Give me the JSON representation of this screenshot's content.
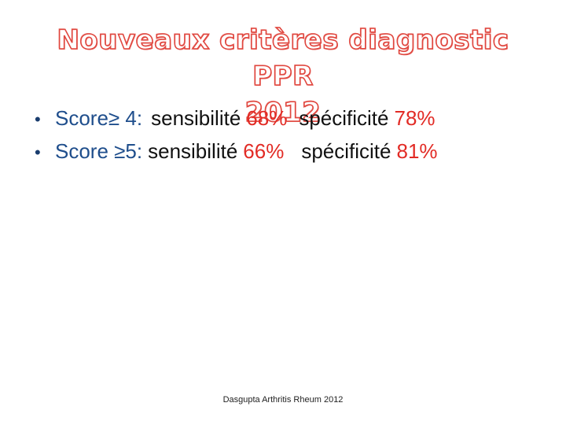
{
  "title": {
    "line1": "Nouveaux critères diagnostic PPR",
    "line2": "2012"
  },
  "bullets": [
    {
      "bullet_glyph": "•",
      "score_label": "Score≥ 4",
      "separator": ":",
      "sens_label": "sensibilité",
      "sens_value": "68%",
      "spec_label": "spécificité",
      "spec_value": "78%"
    },
    {
      "bullet_glyph": "•",
      "score_label": "Score ≥5",
      "separator": ":",
      "sens_label": "sensibilité",
      "sens_value": "66%",
      "spec_label": "spécificité",
      "spec_value": "81%"
    }
  ],
  "footer": {
    "citation": "Dasgupta Arthritis Rheum 2012"
  },
  "colors": {
    "title": "#e0473f",
    "score": "#1f4e8c",
    "value": "#e22b25",
    "text": "#111111"
  }
}
